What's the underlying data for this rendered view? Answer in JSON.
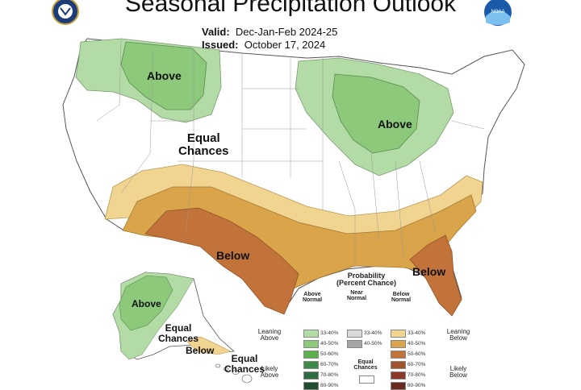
{
  "title": "Seasonal Precipitation Outlook",
  "valid": {
    "label": "Valid:",
    "value": "Dec-Jan-Feb 2024-25"
  },
  "issued": {
    "label": "Issued:",
    "value": "October 17, 2024"
  },
  "logos": {
    "left": "doc-seal-icon",
    "right": "noaa-logo-icon",
    "noaa_text": "NOAA"
  },
  "map_labels": {
    "above_northwest": "Above",
    "above_greatlakes": "Above",
    "equal_center_1": "Equal",
    "equal_center_2": "Chances",
    "below_southwest": "Below",
    "below_southeast": "Below",
    "above_alaska": "Above",
    "equal_alaska_1": "Equal",
    "equal_alaska_2": "Chances",
    "below_alaska": "Below",
    "equal_hawaii_1": "Equal",
    "equal_hawaii_2": "Chances"
  },
  "legend": {
    "title1": "Probability",
    "title2": "(Percent Chance)",
    "col_above": "Above Normal",
    "col_near": "Near Normal",
    "col_below": "Below Normal",
    "leaning_above": "Leaning Above",
    "likely_above": "Likely Above",
    "leaning_below": "Leaning Below",
    "likely_below": "Likely Below",
    "equal": "Equal Chances",
    "rows": [
      "33-40%",
      "40-50%",
      "50-60%",
      "60-70%",
      "70-80%",
      "80-90%"
    ],
    "near_rows": [
      "33-40%",
      "40-50%"
    ],
    "colors": {
      "above": [
        "#b3dba5",
        "#8cc97a",
        "#59b04a",
        "#3d8a48",
        "#2e6b40",
        "#1f4d2e"
      ],
      "near": [
        "#d9d9d9",
        "#a6a6a6"
      ],
      "below": [
        "#f0d48f",
        "#d9a44a",
        "#c2733a",
        "#a0522d",
        "#8b3a2a",
        "#6b2a1f"
      ]
    }
  }
}
